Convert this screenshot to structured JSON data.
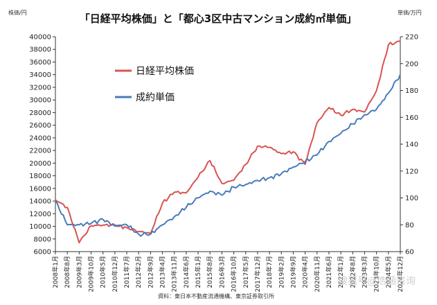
{
  "chart_data": {
    "type": "line",
    "title": "「日経平均株価」と「都心3区中古マンション成約㎡単価」",
    "y_left_unit": "株価/円",
    "y_right_unit": "単価/万円",
    "ylim_left": [
      6000,
      40000
    ],
    "ylim_right": [
      60,
      220
    ],
    "yticks_left": [
      6000,
      8000,
      10000,
      12000,
      14000,
      16000,
      18000,
      20000,
      22000,
      24000,
      26000,
      28000,
      30000,
      32000,
      34000,
      36000,
      38000,
      40000
    ],
    "yticks_right": [
      60,
      80,
      100,
      120,
      140,
      160,
      180,
      200,
      220
    ],
    "xlim": [
      "2008年1月",
      "2024年12月"
    ],
    "x": [
      "2008年1月",
      "2008年8月",
      "2009年3月",
      "2009年10月",
      "2010年5月",
      "2010年12月",
      "2011年7月",
      "2012年2月",
      "2012年9月",
      "2013年4月",
      "2013年11月",
      "2014年6月",
      "2015年1月",
      "2015年8月",
      "2016年3月",
      "2016年10月",
      "2017年5月",
      "2017年12月",
      "2018年7月",
      "2019年2月",
      "2019年9月",
      "2020年4月",
      "2020年11月",
      "2021年6月",
      "2022年1月",
      "2022年8月",
      "2023年3月",
      "2023年10月",
      "2024年5月",
      "2024年12月"
    ],
    "grid": false,
    "legend_position": "top-left",
    "series": [
      {
        "name": "日経平均株価",
        "axis": "left",
        "color": "#d9534f",
        "values": [
          14200,
          13000,
          7400,
          10100,
          10200,
          10200,
          9800,
          9200,
          8900,
          13700,
          15400,
          15300,
          17800,
          20400,
          16800,
          17300,
          19800,
          22700,
          22500,
          21500,
          21800,
          19800,
          26400,
          28800,
          27600,
          28500,
          28100,
          31500,
          38700,
          39300
        ]
      },
      {
        "name": "成約単価",
        "axis": "right",
        "color": "#4a7ab8",
        "values": [
          98,
          80,
          80,
          81,
          84,
          79,
          80,
          73,
          73,
          80,
          86,
          93,
          100,
          105,
          102,
          108,
          110,
          113,
          115,
          118,
          123,
          127,
          132,
          142,
          148,
          155,
          162,
          166,
          178,
          192
        ]
      }
    ]
  },
  "source_note": "資料：東日本不動産流通機構、東京証券取引所",
  "watermark": "搜狐号@浩涵咨询"
}
